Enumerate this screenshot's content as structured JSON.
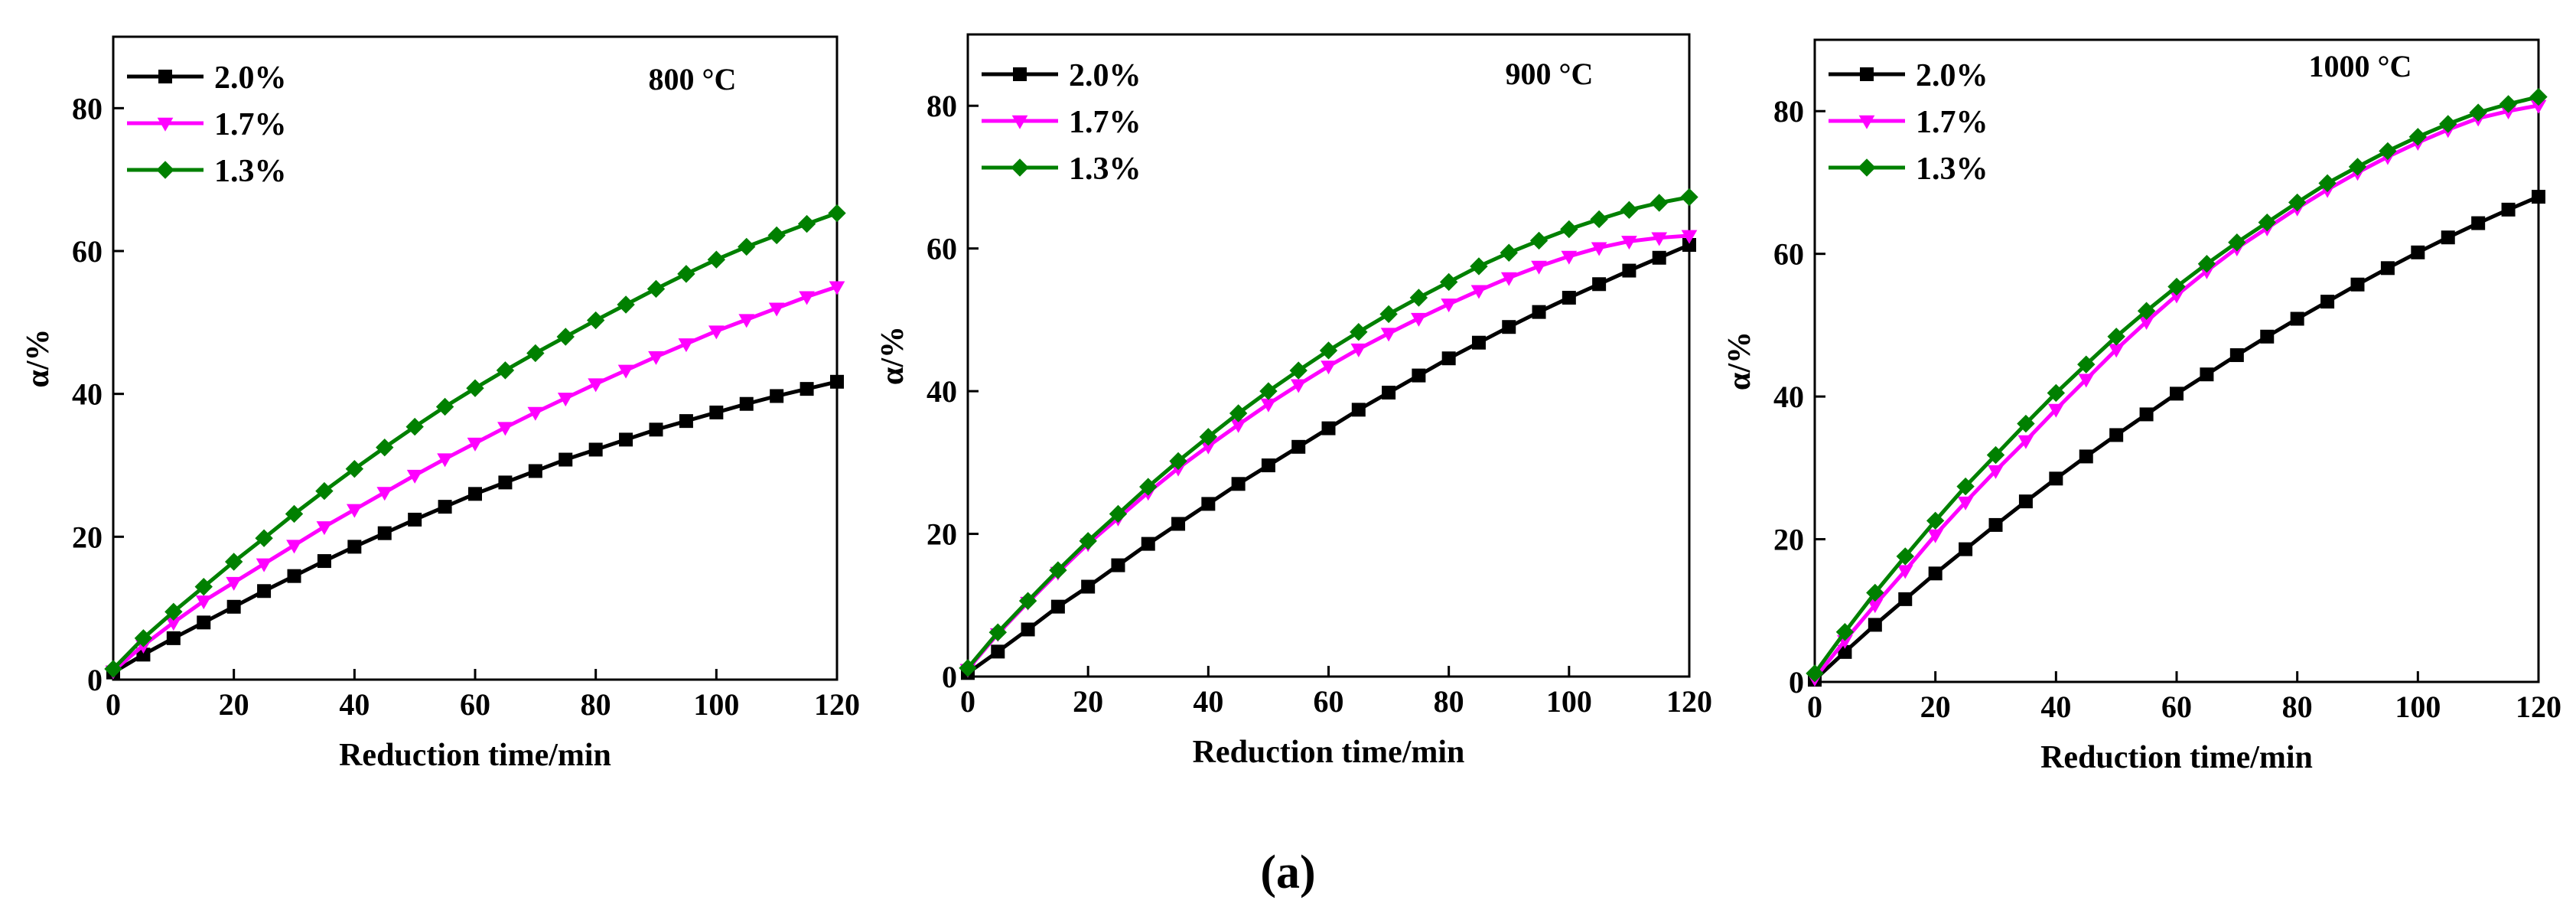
{
  "figure": {
    "caption": "(a)",
    "colors": {
      "2.0%": "#000000",
      "1.7%": "#ff00ff",
      "1.3%": "#008000"
    }
  },
  "chart_data": [
    {
      "type": "line",
      "title": "800 °C",
      "xlabel": "Reduction time/min",
      "ylabel": "α/%",
      "xlim": [
        0,
        120
      ],
      "ylim": [
        0,
        90
      ],
      "xticks": [
        0,
        20,
        40,
        60,
        80,
        100,
        120
      ],
      "yticks": [
        0,
        20,
        40,
        60,
        80
      ],
      "x": [
        0,
        5,
        10,
        15,
        20,
        25,
        30,
        35,
        40,
        45,
        50,
        55,
        60,
        65,
        70,
        75,
        80,
        85,
        90,
        95,
        100,
        105,
        110,
        115,
        120
      ],
      "series": [
        {
          "name": "2.0%",
          "marker": "square",
          "color": "#000000",
          "values": [
            1.0,
            3.5,
            5.8,
            8.0,
            10.2,
            12.4,
            14.5,
            16.6,
            18.6,
            20.5,
            22.4,
            24.2,
            26.0,
            27.6,
            29.2,
            30.8,
            32.2,
            33.6,
            35.0,
            36.2,
            37.4,
            38.6,
            39.7,
            40.7,
            41.7
          ]
        },
        {
          "name": "1.7%",
          "marker": "triangle-down",
          "color": "#ff00ff",
          "values": [
            1.2,
            4.8,
            8.0,
            11.0,
            13.6,
            16.2,
            18.8,
            21.4,
            23.8,
            26.2,
            28.6,
            30.9,
            33.1,
            35.3,
            37.4,
            39.4,
            41.4,
            43.3,
            45.2,
            47.0,
            48.8,
            50.4,
            52.0,
            53.6,
            55.0
          ]
        },
        {
          "name": "1.3%",
          "marker": "diamond",
          "color": "#008000",
          "values": [
            1.5,
            5.8,
            9.5,
            13.0,
            16.5,
            19.8,
            23.2,
            26.4,
            29.5,
            32.5,
            35.4,
            38.2,
            40.8,
            43.3,
            45.7,
            48.0,
            50.3,
            52.5,
            54.7,
            56.8,
            58.8,
            60.6,
            62.2,
            63.8,
            65.3
          ]
        }
      ]
    },
    {
      "type": "line",
      "title": "900 °C",
      "xlabel": "Reduction time/min",
      "ylabel": "α/%",
      "xlim": [
        0,
        120
      ],
      "ylim": [
        0,
        90
      ],
      "xticks": [
        0,
        20,
        40,
        60,
        80,
        100,
        120
      ],
      "yticks": [
        0,
        20,
        40,
        60,
        80
      ],
      "x": [
        0,
        5,
        10,
        15,
        20,
        25,
        30,
        35,
        40,
        45,
        50,
        55,
        60,
        65,
        70,
        75,
        80,
        85,
        90,
        95,
        100,
        105,
        110,
        115,
        120
      ],
      "series": [
        {
          "name": "2.0%",
          "marker": "square",
          "color": "#000000",
          "values": [
            0.5,
            3.5,
            6.6,
            9.8,
            12.6,
            15.6,
            18.6,
            21.4,
            24.2,
            27.0,
            29.6,
            32.2,
            34.8,
            37.4,
            39.8,
            42.2,
            44.6,
            46.8,
            49.0,
            51.1,
            53.1,
            55.0,
            56.9,
            58.7,
            60.5
          ]
        },
        {
          "name": "1.7%",
          "marker": "triangle-down",
          "color": "#ff00ff",
          "values": [
            1.0,
            6.0,
            10.4,
            14.6,
            18.6,
            22.2,
            25.8,
            29.2,
            32.3,
            35.3,
            38.2,
            40.9,
            43.5,
            45.9,
            48.1,
            50.2,
            52.2,
            54.1,
            55.9,
            57.5,
            58.9,
            60.1,
            61.0,
            61.5,
            61.8
          ]
        },
        {
          "name": "1.3%",
          "marker": "diamond",
          "color": "#008000",
          "values": [
            1.2,
            6.2,
            10.6,
            14.9,
            19.0,
            22.8,
            26.6,
            30.2,
            33.6,
            36.9,
            40.0,
            42.9,
            45.7,
            48.3,
            50.8,
            53.1,
            55.3,
            57.5,
            59.4,
            61.1,
            62.7,
            64.1,
            65.4,
            66.4,
            67.2
          ]
        }
      ]
    },
    {
      "type": "line",
      "title": "1000 °C",
      "xlabel": "Reduction time/min",
      "ylabel": "α/%",
      "xlim": [
        0,
        120
      ],
      "ylim": [
        0,
        90
      ],
      "xticks": [
        0,
        20,
        40,
        60,
        80,
        100,
        120
      ],
      "yticks": [
        0,
        20,
        40,
        60,
        80
      ],
      "x": [
        0,
        5,
        10,
        15,
        20,
        25,
        30,
        35,
        40,
        45,
        50,
        55,
        60,
        65,
        70,
        75,
        80,
        85,
        90,
        95,
        100,
        105,
        110,
        115,
        120
      ],
      "series": [
        {
          "name": "2.0%",
          "marker": "square",
          "color": "#000000",
          "values": [
            0.3,
            4.2,
            8.0,
            11.6,
            15.2,
            18.6,
            22.0,
            25.3,
            28.5,
            31.6,
            34.6,
            37.5,
            40.4,
            43.1,
            45.8,
            48.4,
            50.9,
            53.3,
            55.7,
            58.0,
            60.2,
            62.3,
            64.3,
            66.2,
            68.0
          ]
        },
        {
          "name": "1.7%",
          "marker": "triangle-down",
          "color": "#ff00ff",
          "values": [
            0.5,
            5.8,
            10.8,
            15.6,
            20.6,
            25.2,
            29.6,
            33.8,
            38.2,
            42.4,
            46.6,
            50.5,
            54.2,
            57.6,
            60.8,
            63.6,
            66.4,
            69.0,
            71.4,
            73.6,
            75.6,
            77.4,
            79.0,
            80.0,
            80.8
          ]
        },
        {
          "name": "1.3%",
          "marker": "diamond",
          "color": "#008000",
          "values": [
            1.2,
            7.0,
            12.5,
            17.6,
            22.6,
            27.4,
            31.8,
            36.2,
            40.5,
            44.5,
            48.4,
            52.0,
            55.4,
            58.6,
            61.6,
            64.4,
            67.2,
            69.9,
            72.2,
            74.4,
            76.4,
            78.2,
            79.8,
            81.0,
            82.0
          ]
        }
      ]
    }
  ]
}
